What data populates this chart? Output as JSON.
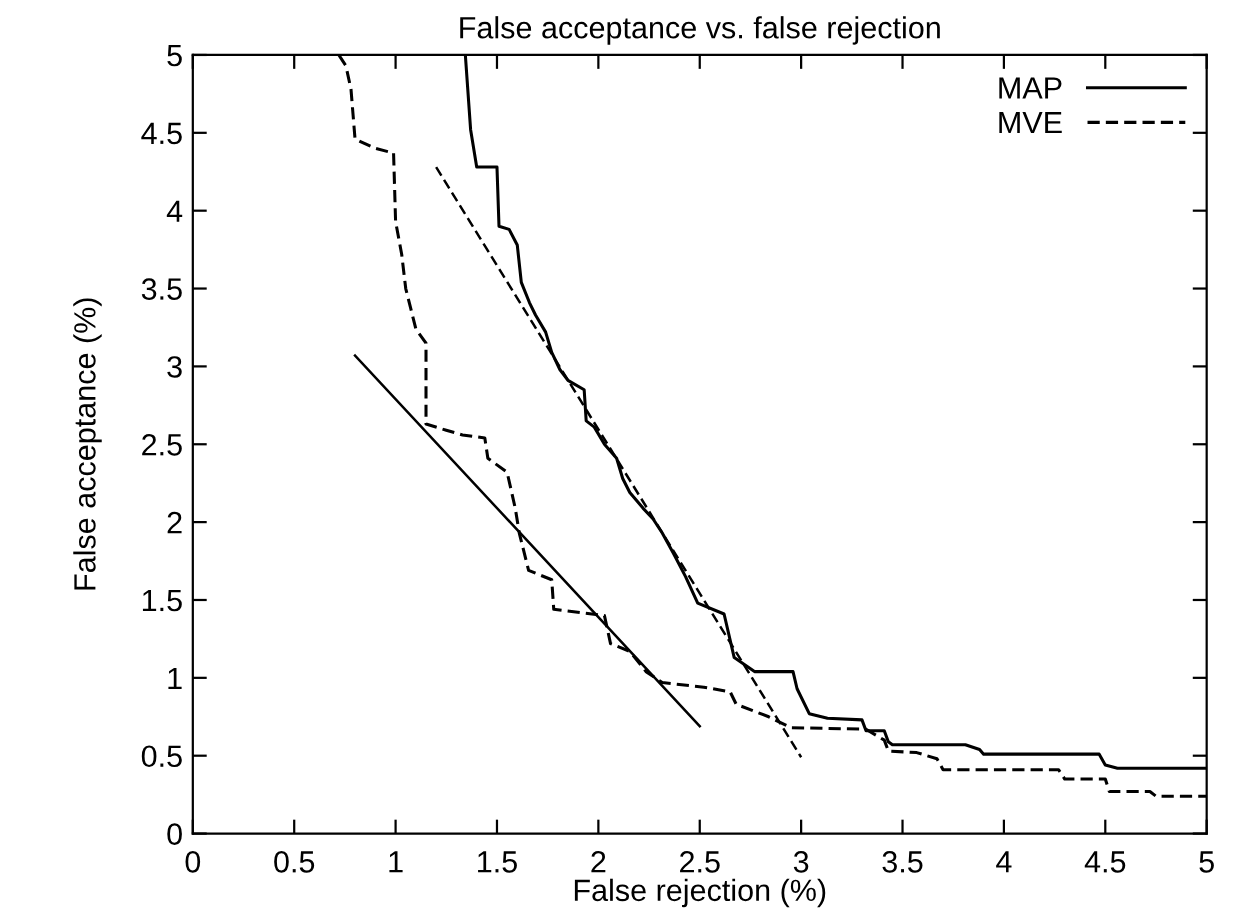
{
  "chart_data": {
    "type": "line",
    "title": "False acceptance vs. false rejection",
    "xlabel": "False rejection (%)",
    "ylabel": "False acceptance (%)",
    "xlim": [
      0,
      5
    ],
    "ylim": [
      0,
      5
    ],
    "xticks": [
      0,
      0.5,
      1,
      1.5,
      2,
      2.5,
      3,
      3.5,
      4,
      4.5,
      5
    ],
    "yticks": [
      0,
      0.5,
      1,
      1.5,
      2,
      2.5,
      3,
      3.5,
      4,
      4.5,
      5
    ],
    "grid": false,
    "legend": "top right",
    "marker": "none",
    "series": [
      {
        "name": "MAP",
        "color": "#000000",
        "line_style": "solid",
        "x": [
          1.344,
          1.37,
          1.4,
          1.5,
          1.51,
          1.56,
          1.6,
          1.62,
          1.66,
          1.69,
          1.74,
          1.77,
          1.81,
          1.85,
          1.93,
          1.94,
          1.98,
          2.03,
          2.09,
          2.12,
          2.155,
          2.22,
          2.27,
          2.315,
          2.37,
          2.43,
          2.49,
          2.62,
          2.67,
          2.77,
          2.96,
          2.98,
          3.04,
          3.13,
          3.3,
          3.32,
          3.41,
          3.43,
          3.45,
          3.81,
          3.88,
          3.9,
          4.47,
          4.5,
          4.56,
          5.0
        ],
        "values": [
          5,
          4.52,
          4.28,
          4.28,
          3.9,
          3.88,
          3.78,
          3.54,
          3.41,
          3.33,
          3.22,
          3.09,
          2.98,
          2.91,
          2.85,
          2.65,
          2.61,
          2.5,
          2.41,
          2.28,
          2.19,
          2.09,
          2.02,
          1.93,
          1.8,
          1.65,
          1.48,
          1.41,
          1.13,
          1.04,
          1.04,
          0.93,
          0.77,
          0.74,
          0.73,
          0.66,
          0.66,
          0.59,
          0.57,
          0.57,
          0.54,
          0.51,
          0.51,
          0.44,
          0.42,
          0.42
        ]
      },
      {
        "name": "MVE",
        "color": "#000000",
        "line_style": "dashed",
        "x": [
          0.72,
          0.755,
          0.78,
          0.8,
          0.9,
          0.99,
          1.0,
          1.03,
          1.05,
          1.1,
          1.15,
          1.15,
          1.25,
          1.33,
          1.44,
          1.455,
          1.55,
          1.59,
          1.61,
          1.656,
          1.77,
          1.78,
          2.03,
          2.06,
          2.155,
          2.235,
          2.315,
          2.52,
          2.65,
          2.68,
          2.84,
          2.95,
          3.32,
          3.41,
          3.43,
          3.57,
          3.67,
          3.7,
          4.27,
          4.3,
          4.5,
          4.52,
          4.72,
          4.75,
          5.0
        ],
        "values": [
          5,
          4.93,
          4.78,
          4.46,
          4.4,
          4.37,
          3.93,
          3.72,
          3.5,
          3.24,
          3.15,
          2.63,
          2.59,
          2.56,
          2.54,
          2.41,
          2.32,
          2.09,
          1.93,
          1.69,
          1.63,
          1.44,
          1.4,
          1.22,
          1.17,
          1.04,
          0.97,
          0.94,
          0.91,
          0.83,
          0.75,
          0.68,
          0.67,
          0.6,
          0.53,
          0.52,
          0.48,
          0.41,
          0.41,
          0.35,
          0.35,
          0.27,
          0.27,
          0.24,
          0.24
        ]
      },
      {
        "color": "#000000",
        "line_style": "solid",
        "x": [
          0.8,
          2.5
        ],
        "values": [
          3.07,
          0.69
        ]
      },
      {
        "color": "#000000",
        "line_style": "dashed",
        "x": [
          1.2,
          3.0
        ],
        "values": [
          4.28,
          0.49
        ]
      }
    ]
  }
}
